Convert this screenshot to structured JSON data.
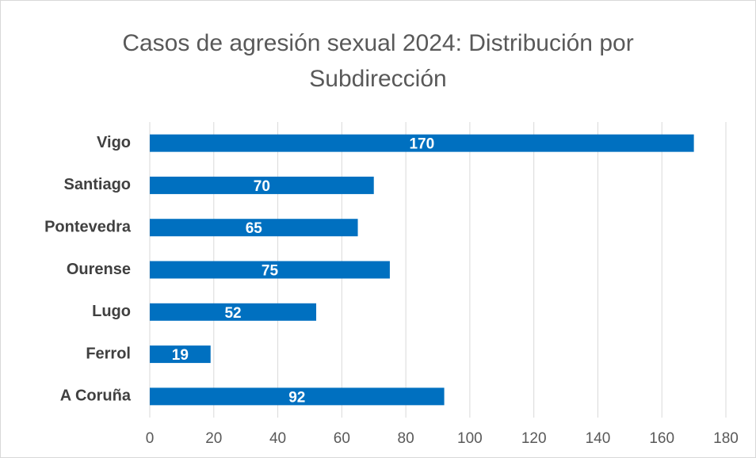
{
  "chart_data": {
    "type": "bar",
    "orientation": "horizontal",
    "title": "Casos de agresión sexual 2024: Distribución por Subdirección",
    "categories": [
      "Vigo",
      "Santiago",
      "Pontevedra",
      "Ourense",
      "Lugo",
      "Ferrol",
      "A Coruña"
    ],
    "values": [
      170,
      70,
      65,
      75,
      52,
      19,
      92
    ],
    "color": "#0070c0",
    "xlim": [
      0,
      180
    ],
    "xticks": [
      0,
      20,
      40,
      60,
      80,
      100,
      120,
      140,
      160,
      180
    ],
    "grid": true
  }
}
